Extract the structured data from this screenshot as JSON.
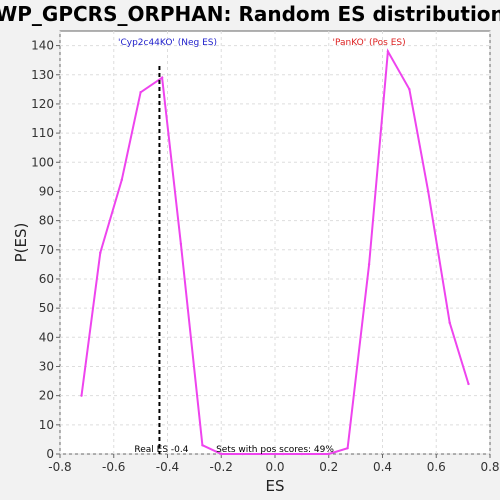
{
  "chart_data": {
    "type": "line",
    "title": "WP_GPCRS_ORPHAN: Random ES distribution",
    "xlabel": "ES",
    "ylabel": "P(ES)",
    "xlim": [
      -0.8,
      0.8
    ],
    "ylim": [
      0,
      145
    ],
    "x_ticks": [
      -0.8,
      -0.6,
      -0.4,
      -0.2,
      0.0,
      0.2,
      0.4,
      0.6,
      0.8
    ],
    "x_tick_labels": [
      "-0.8",
      "-0.6",
      "-0.4",
      "-0.2",
      "0.0",
      "0.2",
      "0.4",
      "0.6",
      "0.8"
    ],
    "y_ticks": [
      0,
      10,
      20,
      30,
      40,
      50,
      60,
      70,
      80,
      90,
      100,
      110,
      120,
      130,
      140
    ],
    "grid": true,
    "series": [
      {
        "color": "#ee44ee",
        "x": [
          -0.72,
          -0.65,
          -0.57,
          -0.5,
          -0.42,
          -0.35,
          -0.27,
          -0.2,
          -0.12,
          -0.05,
          0.03,
          0.1,
          0.2,
          0.27,
          0.35,
          0.42,
          0.5,
          0.57,
          0.65,
          0.72
        ],
        "y": [
          20,
          69,
          94,
          124,
          129,
          72,
          3,
          0,
          0,
          0,
          0,
          0,
          0,
          2,
          65,
          138,
          125,
          90,
          45,
          24
        ]
      }
    ],
    "real_es": {
      "x": -0.43,
      "label": "Real ES -0.4",
      "color": "#000000"
    },
    "neg_label": {
      "text": "'Cyp2c44KO' (Neg ES)",
      "color": "#2222cc"
    },
    "pos_label": {
      "text": "'PanKO' (Pos ES)",
      "color": "#dd2222"
    },
    "annotation": {
      "text": "Sets with pos scores: 49%",
      "color": "#000000"
    }
  }
}
